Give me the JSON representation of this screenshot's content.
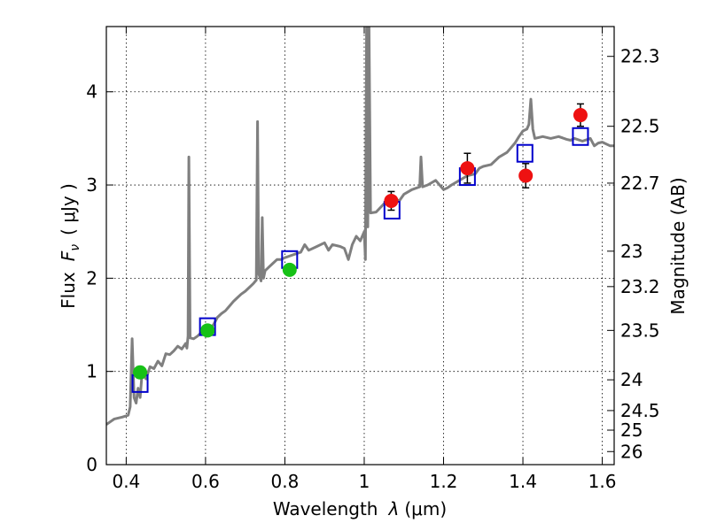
{
  "chart_data": {
    "type": "scatter",
    "xlabel_main": "Wavelength",
    "xlabel_symbol": "λ",
    "xlabel_unit": "(μm)",
    "ylabel_main": "Flux",
    "ylabel_symbol": "F",
    "ylabel_subscript": "ν",
    "ylabel_unit": "( μJy )",
    "ylabel_right": "Magnitude (AB)",
    "xlim": [
      0.35,
      1.63
    ],
    "ylim": [
      0,
      4.7
    ],
    "grid": true,
    "x_ticks": [
      0.4,
      0.6,
      0.8,
      1.0,
      1.2,
      1.4,
      1.6
    ],
    "x_tick_labels": [
      "0.4",
      "0.6",
      "0.8",
      "1",
      "1.2",
      "1.4",
      "1.6"
    ],
    "y_ticks": [
      0,
      1,
      2,
      3,
      4
    ],
    "y_tick_labels": [
      "0",
      "1",
      "2",
      "3",
      "4"
    ],
    "right_ticks": [
      {
        "flux": 0.14,
        "label": "26"
      },
      {
        "flux": 0.37,
        "label": "25"
      },
      {
        "flux": 0.58,
        "label": "24.5"
      },
      {
        "flux": 0.91,
        "label": "24"
      },
      {
        "flux": 1.44,
        "label": "23.5"
      },
      {
        "flux": 1.91,
        "label": "23.2"
      },
      {
        "flux": 2.29,
        "label": "23"
      },
      {
        "flux": 3.02,
        "label": "22.7"
      },
      {
        "flux": 3.63,
        "label": "22.5"
      },
      {
        "flux": 4.38,
        "label": "22.3"
      }
    ],
    "colors": {
      "model": "#7f7f7f",
      "squares": "#0000cc",
      "green": "#16c116",
      "red": "#ee1111",
      "errorbar": "#000000"
    },
    "model_spectrum": [
      [
        0.35,
        0.43
      ],
      [
        0.37,
        0.49
      ],
      [
        0.39,
        0.51
      ],
      [
        0.405,
        0.53
      ],
      [
        0.41,
        0.62
      ],
      [
        0.415,
        1.35
      ],
      [
        0.42,
        0.72
      ],
      [
        0.425,
        0.66
      ],
      [
        0.43,
        0.82
      ],
      [
        0.435,
        0.72
      ],
      [
        0.44,
        0.98
      ],
      [
        0.45,
        0.92
      ],
      [
        0.46,
        1.05
      ],
      [
        0.47,
        1.03
      ],
      [
        0.48,
        1.11
      ],
      [
        0.49,
        1.06
      ],
      [
        0.5,
        1.19
      ],
      [
        0.51,
        1.18
      ],
      [
        0.52,
        1.22
      ],
      [
        0.53,
        1.27
      ],
      [
        0.54,
        1.24
      ],
      [
        0.55,
        1.3
      ],
      [
        0.553,
        1.25
      ],
      [
        0.556,
        1.38
      ],
      [
        0.558,
        3.3
      ],
      [
        0.561,
        1.36
      ],
      [
        0.57,
        1.35
      ],
      [
        0.58,
        1.38
      ],
      [
        0.59,
        1.42
      ],
      [
        0.6,
        1.43
      ],
      [
        0.61,
        1.46
      ],
      [
        0.62,
        1.5
      ],
      [
        0.63,
        1.58
      ],
      [
        0.64,
        1.62
      ],
      [
        0.65,
        1.65
      ],
      [
        0.66,
        1.7
      ],
      [
        0.67,
        1.75
      ],
      [
        0.68,
        1.79
      ],
      [
        0.69,
        1.83
      ],
      [
        0.7,
        1.86
      ],
      [
        0.71,
        1.9
      ],
      [
        0.72,
        1.94
      ],
      [
        0.728,
        1.98
      ],
      [
        0.731,
        3.68
      ],
      [
        0.734,
        2.05
      ],
      [
        0.74,
        1.97
      ],
      [
        0.743,
        2.65
      ],
      [
        0.746,
        2.0
      ],
      [
        0.75,
        2.08
      ],
      [
        0.76,
        2.12
      ],
      [
        0.77,
        2.16
      ],
      [
        0.78,
        2.2
      ],
      [
        0.79,
        2.2
      ],
      [
        0.8,
        2.22
      ],
      [
        0.82,
        2.25
      ],
      [
        0.84,
        2.28
      ],
      [
        0.85,
        2.36
      ],
      [
        0.86,
        2.3
      ],
      [
        0.88,
        2.34
      ],
      [
        0.9,
        2.38
      ],
      [
        0.91,
        2.3
      ],
      [
        0.92,
        2.36
      ],
      [
        0.94,
        2.34
      ],
      [
        0.95,
        2.32
      ],
      [
        0.96,
        2.2
      ],
      [
        0.97,
        2.36
      ],
      [
        0.98,
        2.45
      ],
      [
        0.99,
        2.4
      ],
      [
        1.0,
        2.5
      ],
      [
        1.003,
        2.2
      ],
      [
        1.006,
        4.8
      ],
      [
        1.009,
        2.55
      ],
      [
        1.012,
        4.8
      ],
      [
        1.016,
        2.7
      ],
      [
        1.03,
        2.71
      ],
      [
        1.05,
        2.8
      ],
      [
        1.07,
        2.82
      ],
      [
        1.09,
        2.84
      ],
      [
        1.1,
        2.9
      ],
      [
        1.12,
        2.95
      ],
      [
        1.14,
        2.98
      ],
      [
        1.143,
        3.3
      ],
      [
        1.147,
        2.98
      ],
      [
        1.16,
        3.0
      ],
      [
        1.18,
        3.05
      ],
      [
        1.2,
        2.95
      ],
      [
        1.21,
        2.97
      ],
      [
        1.22,
        3.0
      ],
      [
        1.24,
        3.05
      ],
      [
        1.26,
        3.1
      ],
      [
        1.28,
        3.12
      ],
      [
        1.29,
        3.18
      ],
      [
        1.3,
        3.2
      ],
      [
        1.32,
        3.22
      ],
      [
        1.34,
        3.3
      ],
      [
        1.36,
        3.35
      ],
      [
        1.38,
        3.45
      ],
      [
        1.39,
        3.52
      ],
      [
        1.4,
        3.58
      ],
      [
        1.41,
        3.6
      ],
      [
        1.415,
        3.65
      ],
      [
        1.42,
        3.92
      ],
      [
        1.425,
        3.6
      ],
      [
        1.43,
        3.5
      ],
      [
        1.45,
        3.52
      ],
      [
        1.47,
        3.5
      ],
      [
        1.49,
        3.52
      ],
      [
        1.51,
        3.49
      ],
      [
        1.52,
        3.48
      ],
      [
        1.53,
        3.5
      ],
      [
        1.55,
        3.47
      ],
      [
        1.57,
        3.5
      ],
      [
        1.58,
        3.42
      ],
      [
        1.59,
        3.45
      ],
      [
        1.6,
        3.46
      ],
      [
        1.62,
        3.42
      ],
      [
        1.63,
        3.42
      ]
    ],
    "model_squares": [
      {
        "x": 0.435,
        "y": 0.87
      },
      {
        "x": 0.605,
        "y": 1.48
      },
      {
        "x": 0.812,
        "y": 2.2
      },
      {
        "x": 1.07,
        "y": 2.73
      },
      {
        "x": 1.26,
        "y": 3.09
      },
      {
        "x": 1.405,
        "y": 3.34
      },
      {
        "x": 1.545,
        "y": 3.52
      }
    ],
    "observed_points": [
      {
        "x": 0.435,
        "y": 0.99,
        "err": 0.06,
        "color": "green"
      },
      {
        "x": 0.605,
        "y": 1.44,
        "err": 0.05,
        "color": "green"
      },
      {
        "x": 0.812,
        "y": 2.09,
        "err": 0.05,
        "color": "green"
      },
      {
        "x": 1.068,
        "y": 2.83,
        "err": 0.1,
        "color": "red"
      },
      {
        "x": 1.26,
        "y": 3.18,
        "err": 0.16,
        "color": "red"
      },
      {
        "x": 1.407,
        "y": 3.1,
        "err": 0.13,
        "color": "red"
      },
      {
        "x": 1.545,
        "y": 3.75,
        "err": 0.12,
        "color": "red"
      }
    ]
  }
}
